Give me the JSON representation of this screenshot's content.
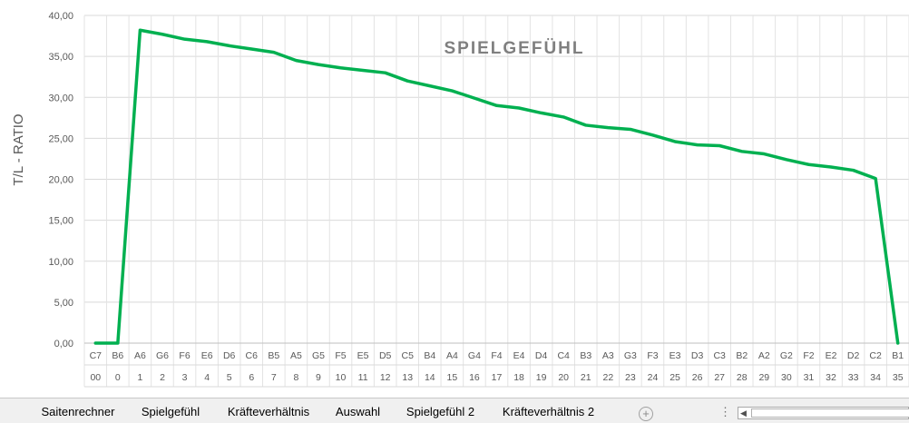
{
  "chart_data": {
    "type": "line",
    "title": "SPIELGEFÜHL",
    "ylabel": "T/L - RATIO",
    "ylim": [
      0,
      40
    ],
    "yticks": [
      "0,00",
      "5,00",
      "10,00",
      "15,00",
      "20,00",
      "25,00",
      "30,00",
      "35,00",
      "40,00"
    ],
    "grid": true,
    "categories": [
      {
        "note": "C7",
        "num": "00"
      },
      {
        "note": "B6",
        "num": "0"
      },
      {
        "note": "A6",
        "num": "1"
      },
      {
        "note": "G6",
        "num": "2"
      },
      {
        "note": "F6",
        "num": "3"
      },
      {
        "note": "E6",
        "num": "4"
      },
      {
        "note": "D6",
        "num": "5"
      },
      {
        "note": "C6",
        "num": "6"
      },
      {
        "note": "B5",
        "num": "7"
      },
      {
        "note": "A5",
        "num": "8"
      },
      {
        "note": "G5",
        "num": "9"
      },
      {
        "note": "F5",
        "num": "10"
      },
      {
        "note": "E5",
        "num": "11"
      },
      {
        "note": "D5",
        "num": "12"
      },
      {
        "note": "C5",
        "num": "13"
      },
      {
        "note": "B4",
        "num": "14"
      },
      {
        "note": "A4",
        "num": "15"
      },
      {
        "note": "G4",
        "num": "16"
      },
      {
        "note": "F4",
        "num": "17"
      },
      {
        "note": "E4",
        "num": "18"
      },
      {
        "note": "D4",
        "num": "19"
      },
      {
        "note": "C4",
        "num": "20"
      },
      {
        "note": "B3",
        "num": "21"
      },
      {
        "note": "A3",
        "num": "22"
      },
      {
        "note": "G3",
        "num": "23"
      },
      {
        "note": "F3",
        "num": "24"
      },
      {
        "note": "E3",
        "num": "25"
      },
      {
        "note": "D3",
        "num": "26"
      },
      {
        "note": "C3",
        "num": "27"
      },
      {
        "note": "B2",
        "num": "28"
      },
      {
        "note": "A2",
        "num": "29"
      },
      {
        "note": "G2",
        "num": "30"
      },
      {
        "note": "F2",
        "num": "31"
      },
      {
        "note": "E2",
        "num": "32"
      },
      {
        "note": "D2",
        "num": "33"
      },
      {
        "note": "C2",
        "num": "34"
      },
      {
        "note": "B1",
        "num": "35"
      }
    ],
    "series": [
      {
        "color": "#00b050",
        "values": [
          0,
          0,
          38.2,
          37.7,
          37.1,
          36.8,
          36.3,
          35.9,
          35.5,
          34.5,
          34.0,
          33.6,
          33.3,
          33.0,
          32.0,
          31.4,
          30.8,
          29.9,
          29.0,
          28.7,
          28.1,
          27.6,
          26.6,
          26.3,
          26.1,
          25.4,
          24.6,
          24.2,
          24.1,
          23.4,
          23.1,
          22.4,
          21.8,
          21.5,
          21.1,
          20.1,
          0
        ]
      }
    ]
  },
  "tabs": [
    {
      "label": "Saitenrechner",
      "style": "navy"
    },
    {
      "label": "Spielgefühl",
      "style": "active"
    },
    {
      "label": "Kräfteverhältnis",
      "style": "navy"
    },
    {
      "label": "Auswahl",
      "style": "red"
    },
    {
      "label": "Spielgefühl 2",
      "style": "red"
    },
    {
      "label": "Kräfteverhältnis 2",
      "style": "red"
    }
  ],
  "icons": {
    "add_sheet": "plus-circle-icon",
    "more": "more-options-icon",
    "scroll_left": "scroll-left-icon"
  },
  "glyphs": {
    "add_sheet": "+",
    "more": "⋮",
    "scroll_left": "◀"
  }
}
